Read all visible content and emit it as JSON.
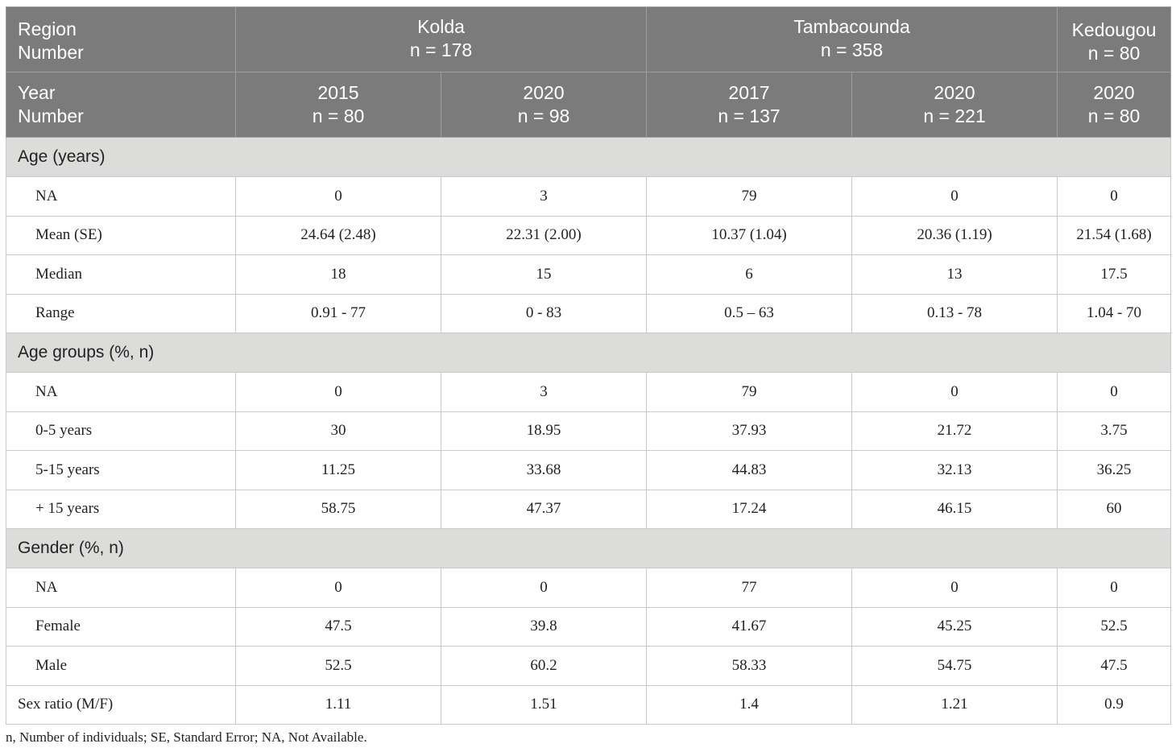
{
  "header": {
    "row1": {
      "label": [
        "Region",
        "Number"
      ],
      "kolda": [
        "Kolda",
        "n = 178"
      ],
      "tamba": [
        "Tambacounda",
        "n = 358"
      ],
      "kedougou": [
        "Kedougou",
        "n = 80"
      ]
    },
    "row2": {
      "label": [
        "Year",
        "Number"
      ],
      "cols": [
        [
          "2015",
          "n = 80"
        ],
        [
          "2020",
          "n = 98"
        ],
        [
          "2017",
          "n = 137"
        ],
        [
          "2020",
          "n = 221"
        ],
        [
          "2020",
          "n = 80"
        ]
      ]
    }
  },
  "sections": [
    {
      "title": "Age (years)",
      "rows": [
        {
          "label": "NA",
          "values": [
            "0",
            "3",
            "79",
            "0",
            "0"
          ]
        },
        {
          "label": "Mean (SE)",
          "values": [
            "24.64 (2.48)",
            "22.31 (2.00)",
            "10.37 (1.04)",
            "20.36 (1.19)",
            "21.54 (1.68)"
          ]
        },
        {
          "label": "Median",
          "values": [
            "18",
            "15",
            "6",
            "13",
            "17.5"
          ]
        },
        {
          "label": "Range",
          "values": [
            "0.91 - 77",
            "0 - 83",
            "0.5 – 63",
            "0.13 - 78",
            "1.04 - 70"
          ]
        }
      ]
    },
    {
      "title": "Age groups (%, n)",
      "rows": [
        {
          "label": "NA",
          "values": [
            "0",
            "3",
            "79",
            "0",
            "0"
          ]
        },
        {
          "label": "0-5 years",
          "values": [
            "30",
            "18.95",
            "37.93",
            "21.72",
            "3.75"
          ]
        },
        {
          "label": "5-15 years",
          "values": [
            "11.25",
            "33.68",
            "44.83",
            "32.13",
            "36.25"
          ]
        },
        {
          "label": "+ 15 years",
          "values": [
            "58.75",
            "47.37",
            "17.24",
            "46.15",
            "60"
          ]
        }
      ]
    },
    {
      "title": "Gender (%, n)",
      "rows": [
        {
          "label": "NA",
          "values": [
            "0",
            "0",
            "77",
            "0",
            "0"
          ]
        },
        {
          "label": "Female",
          "values": [
            "47.5",
            "39.8",
            "41.67",
            "45.25",
            "52.5"
          ]
        },
        {
          "label": "Male",
          "values": [
            "52.5",
            "60.2",
            "58.33",
            "54.75",
            "47.5"
          ]
        }
      ]
    }
  ],
  "final_row": {
    "label": "Sex ratio (M/F)",
    "values": [
      "1.11",
      "1.51",
      "1.4",
      "1.21",
      "0.9"
    ]
  },
  "footnote": "n, Number of individuals; SE, Standard Error; NA, Not Available."
}
